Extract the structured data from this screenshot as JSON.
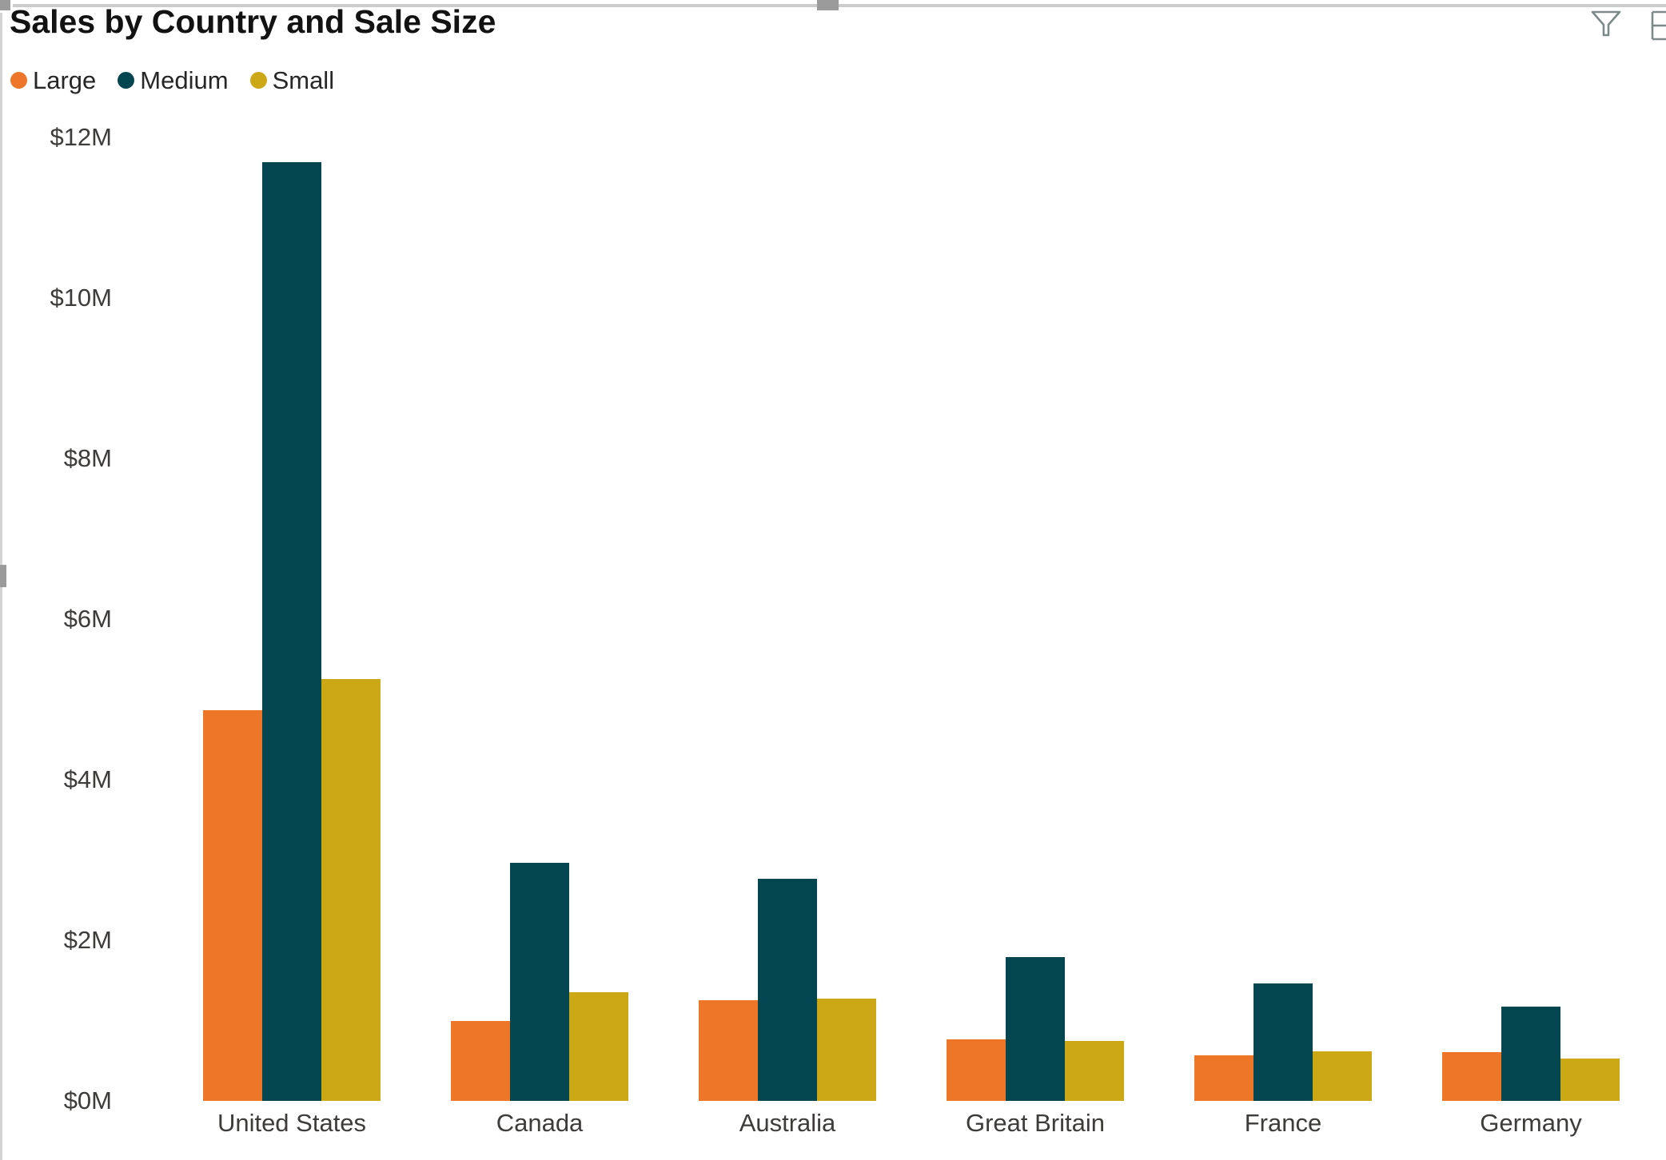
{
  "visual_header": {
    "icons": [
      {
        "name": "filter-icon",
        "meaning": "filters"
      },
      {
        "name": "clipped-options-icon",
        "meaning": "partially visible header icon at image edge"
      }
    ],
    "icon_color": "#7d8a89"
  },
  "selection_chrome": {
    "border_color": "#cccccc",
    "handle_color": "#9b9b9b"
  },
  "chart_data": {
    "type": "bar",
    "title": "Sales by Country and Sale Size",
    "categories": [
      "United States",
      "Canada",
      "Australia",
      "Great Britain",
      "France",
      "Germany"
    ],
    "series": [
      {
        "name": "Large",
        "color": "#EE7629",
        "values": [
          4.87,
          1.0,
          1.25,
          0.77,
          0.57,
          0.61
        ]
      },
      {
        "name": "Medium",
        "color": "#044650",
        "values": [
          11.69,
          2.97,
          2.77,
          1.79,
          1.46,
          1.17
        ]
      },
      {
        "name": "Small",
        "color": "#CCA816",
        "values": [
          5.25,
          1.35,
          1.27,
          0.75,
          0.62,
          0.53
        ]
      }
    ],
    "value_unit": "millions USD",
    "ylabel": "",
    "xlabel": "",
    "ylim": [
      0,
      12
    ],
    "y_ticks": [
      {
        "label": "$0M",
        "value": 0
      },
      {
        "label": "$2M",
        "value": 2
      },
      {
        "label": "$4M",
        "value": 4
      },
      {
        "label": "$6M",
        "value": 6
      },
      {
        "label": "$8M",
        "value": 8
      },
      {
        "label": "$10M",
        "value": 10
      },
      {
        "label": "$12M",
        "value": 12
      }
    ],
    "grid": false,
    "legend_position": "top-left"
  }
}
